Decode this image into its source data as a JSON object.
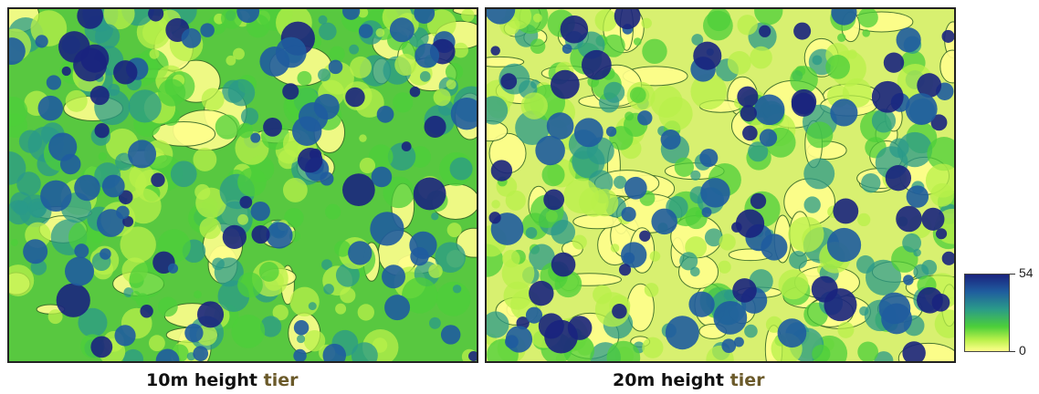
{
  "panels": [
    {
      "caption_main": "10m height",
      "caption_tier": "tier"
    },
    {
      "caption_main": "20m height",
      "caption_tier": "tier"
    }
  ],
  "colorbar": {
    "max_label": "54",
    "min_label": "0",
    "colors": [
      "#1a237e",
      "#1f5c9e",
      "#2a9a8a",
      "#4ccf3a",
      "#b8f04a",
      "#ffff8c"
    ]
  }
}
